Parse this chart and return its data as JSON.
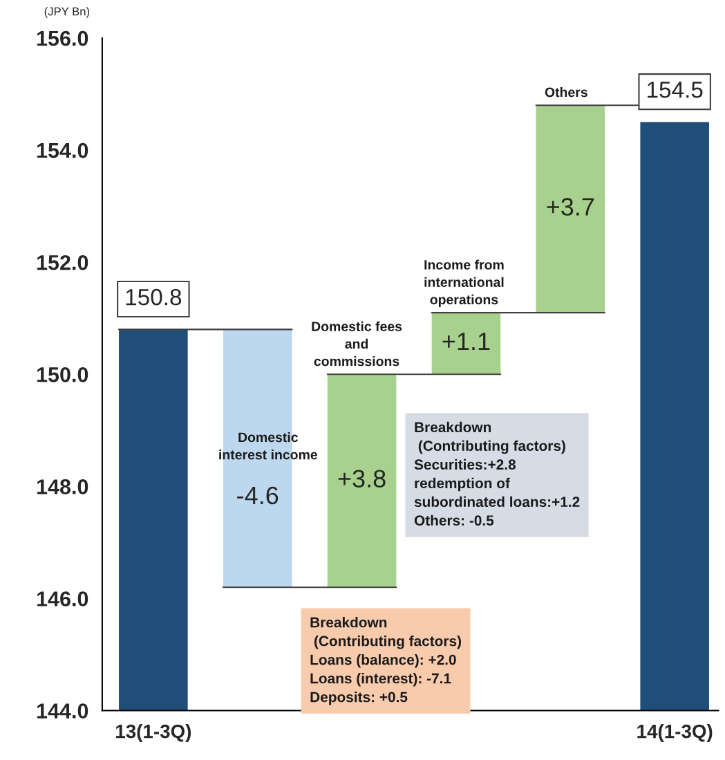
{
  "chart_data": {
    "type": "bar",
    "ylabel": "(JPY Bn)",
    "categories": [
      "13(1-3Q)",
      null,
      null,
      null,
      null,
      "14(1-3Q)"
    ],
    "values": [
      150.8,
      -4.6,
      3.8,
      1.1,
      3.7,
      154.5
    ],
    "base": [
      null,
      150.8,
      146.2,
      150.0,
      151.1,
      null
    ],
    "colors": [
      "#1f4e79",
      "#bdd7ee",
      "#a9d18e",
      "#a9d18e",
      "#a9d18e",
      "#1f4e79"
    ],
    "value_labels": [
      "150.8",
      "-4.6",
      "+3.8",
      "+1.1",
      "+3.7",
      "154.5"
    ],
    "ylim": [
      144,
      156
    ],
    "yticks": [
      {
        "value": 144,
        "label": "144.0"
      },
      {
        "value": 146,
        "label": "146.0"
      },
      {
        "value": 148,
        "label": "148.0"
      },
      {
        "value": 150,
        "label": "150.0"
      },
      {
        "value": 152,
        "label": "152.0"
      },
      {
        "value": 154,
        "label": "154.0"
      },
      {
        "value": 156,
        "label": "156.0"
      }
    ],
    "grid": false,
    "legend": false,
    "annotations": [
      "Domestic\ninterest income",
      {
        "text": "Domestic fees\nand\ncommissions",
        "y": 150.0
      },
      {
        "text": "Income from\ninternational\noperations",
        "y": 151.1
      },
      {
        "text": "Others",
        "y": 154.8
      },
      "Breakdown\n (Contributing factors)\nLoans (balance): +2.0\nLoans (interest): -7.1\nDeposits: +0.5",
      "Breakdown\n (Contributing factors)\nSecurities:+2.8\nredemption of\nsubordinated loans:+1.2\nOthers: -0.5"
    ]
  }
}
